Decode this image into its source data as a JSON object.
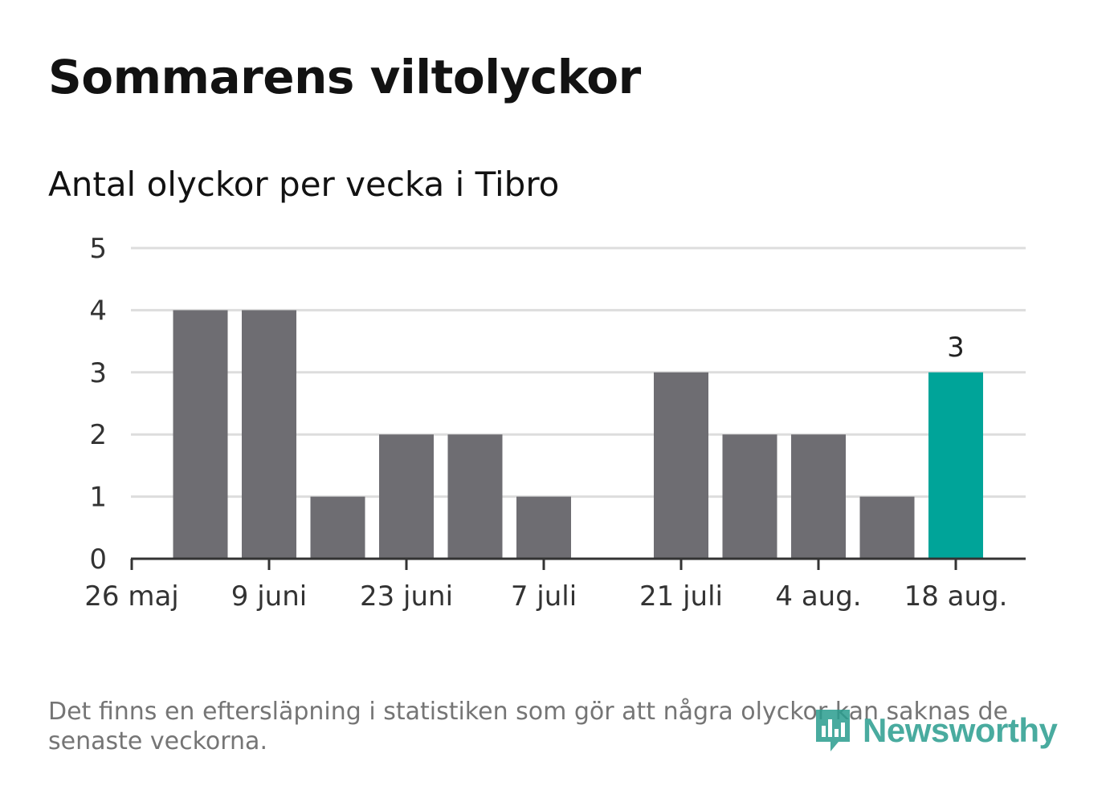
{
  "title": "Sommarens viltolyckor",
  "subtitle": "Antal olyckor per vecka i Tibro",
  "footnote": "Det finns en eftersläpning i statistiken som gör att några olyckor kan saknas de senaste veckorna.",
  "logo": {
    "text": "Newsworthy",
    "icon": "newsworthy-chart-bubble-icon"
  },
  "colors": {
    "bar": "#6e6d72",
    "highlight": "#00a499",
    "grid": "#dddddd",
    "axis": "#333333",
    "logo": "#2a9d8f"
  },
  "chart_data": {
    "type": "bar",
    "x": [
      "2024-05-26",
      "2024-06-02",
      "2024-06-09",
      "2024-06-16",
      "2024-06-23",
      "2024-06-30",
      "2024-07-07",
      "2024-07-14",
      "2024-07-21",
      "2024-07-28",
      "2024-08-04",
      "2024-08-11",
      "2024-08-18"
    ],
    "values": [
      null,
      4,
      4,
      1,
      2,
      2,
      1,
      0,
      3,
      2,
      2,
      1,
      3
    ],
    "highlight_index": 12,
    "highlight_label": "3",
    "ylim": [
      0,
      5
    ],
    "yticks": [
      "0",
      "1",
      "2",
      "3",
      "4",
      "5"
    ],
    "xticks": [
      {
        "x": "2024-05-26",
        "label": "26 maj"
      },
      {
        "x": "2024-06-09",
        "label": "9 juni"
      },
      {
        "x": "2024-06-23",
        "label": "23 juni"
      },
      {
        "x": "2024-07-07",
        "label": "7 juli"
      },
      {
        "x": "2024-07-21",
        "label": "21 juli"
      },
      {
        "x": "2024-08-04",
        "label": "4 aug."
      },
      {
        "x": "2024-08-18",
        "label": "18 aug."
      }
    ],
    "grid": true,
    "legend": "none"
  }
}
